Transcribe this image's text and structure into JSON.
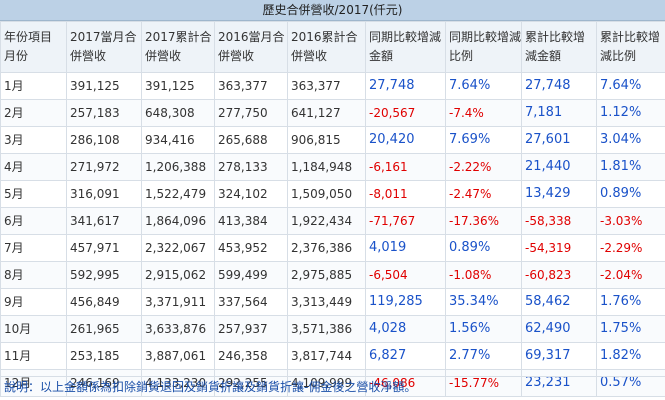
{
  "title": "歷史合併營收/2017(仟元)",
  "headers": [
    [
      "年份項目",
      "月份"
    ],
    [
      "2017當月合",
      "併營收"
    ],
    [
      "2017累計合",
      "併營收"
    ],
    [
      "2016當月合",
      "併營收"
    ],
    [
      "2016累計合",
      "併營收"
    ],
    [
      "同期比較增減",
      "金額"
    ],
    [
      "同期比較增減",
      "比例"
    ],
    [
      "累計比較增",
      "減金額"
    ],
    [
      "累計比較增",
      "減比例"
    ]
  ],
  "rows": [
    {
      "month": "1月",
      "m2017": "391,125",
      "c2017": "391,125",
      "m2016": "363,377",
      "c2016": "363,377",
      "yoy_amt": "27,748",
      "yoy_pct": "7.64%",
      "cum_amt": "27,748",
      "cum_pct": "7.64%"
    },
    {
      "month": "2月",
      "m2017": "257,183",
      "c2017": "648,308",
      "m2016": "277,750",
      "c2016": "641,127",
      "yoy_amt": "-20,567",
      "yoy_pct": "-7.4%",
      "cum_amt": "7,181",
      "cum_pct": "1.12%"
    },
    {
      "month": "3月",
      "m2017": "286,108",
      "c2017": "934,416",
      "m2016": "265,688",
      "c2016": "906,815",
      "yoy_amt": "20,420",
      "yoy_pct": "7.69%",
      "cum_amt": "27,601",
      "cum_pct": "3.04%"
    },
    {
      "month": "4月",
      "m2017": "271,972",
      "c2017": "1,206,388",
      "m2016": "278,133",
      "c2016": "1,184,948",
      "yoy_amt": "-6,161",
      "yoy_pct": "-2.22%",
      "cum_amt": "21,440",
      "cum_pct": "1.81%"
    },
    {
      "month": "5月",
      "m2017": "316,091",
      "c2017": "1,522,479",
      "m2016": "324,102",
      "c2016": "1,509,050",
      "yoy_amt": "-8,011",
      "yoy_pct": "-2.47%",
      "cum_amt": "13,429",
      "cum_pct": "0.89%"
    },
    {
      "month": "6月",
      "m2017": "341,617",
      "c2017": "1,864,096",
      "m2016": "413,384",
      "c2016": "1,922,434",
      "yoy_amt": "-71,767",
      "yoy_pct": "-17.36%",
      "cum_amt": "-58,338",
      "cum_pct": "-3.03%"
    },
    {
      "month": "7月",
      "m2017": "457,971",
      "c2017": "2,322,067",
      "m2016": "453,952",
      "c2016": "2,376,386",
      "yoy_amt": "4,019",
      "yoy_pct": "0.89%",
      "cum_amt": "-54,319",
      "cum_pct": "-2.29%"
    },
    {
      "month": "8月",
      "m2017": "592,995",
      "c2017": "2,915,062",
      "m2016": "599,499",
      "c2016": "2,975,885",
      "yoy_amt": "-6,504",
      "yoy_pct": "-1.08%",
      "cum_amt": "-60,823",
      "cum_pct": "-2.04%"
    },
    {
      "month": "9月",
      "m2017": "456,849",
      "c2017": "3,371,911",
      "m2016": "337,564",
      "c2016": "3,313,449",
      "yoy_amt": "119,285",
      "yoy_pct": "35.34%",
      "cum_amt": "58,462",
      "cum_pct": "1.76%"
    },
    {
      "month": "10月",
      "m2017": "261,965",
      "c2017": "3,633,876",
      "m2016": "257,937",
      "c2016": "3,571,386",
      "yoy_amt": "4,028",
      "yoy_pct": "1.56%",
      "cum_amt": "62,490",
      "cum_pct": "1.75%"
    },
    {
      "month": "11月",
      "m2017": "253,185",
      "c2017": "3,887,061",
      "m2016": "246,358",
      "c2016": "3,817,744",
      "yoy_amt": "6,827",
      "yoy_pct": "2.77%",
      "cum_amt": "69,317",
      "cum_pct": "1.82%"
    },
    {
      "month": "12月",
      "m2017": "246,169",
      "c2017": "4,133,230",
      "m2016": "292,255",
      "c2016": "4,109,999",
      "yoy_amt": "-46,086",
      "yoy_pct": "-15.77%",
      "cum_amt": "23,231",
      "cum_pct": "0.57%"
    }
  ],
  "note": "說明：以上金額係為扣除銷貨退回及銷貨折讓及銷貨折讓-佣金後之營收淨額。",
  "colors": {
    "positive": "#1a52c9",
    "negative": "#e00000",
    "header_bg": "#bcd1e6"
  }
}
